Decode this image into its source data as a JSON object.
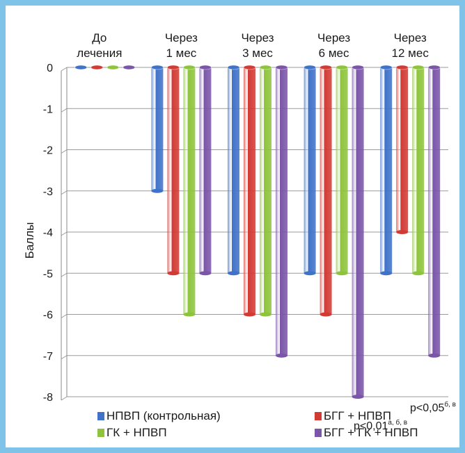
{
  "chart_data": {
    "type": "bar",
    "style": "3d-cylinder",
    "categories": [
      [
        "До",
        "лечения"
      ],
      [
        "Через",
        "1 мес"
      ],
      [
        "Через",
        "3 мес"
      ],
      [
        "Через",
        "6 мес"
      ],
      [
        "Через",
        "12 мес"
      ]
    ],
    "series": [
      {
        "name": "НПВП (контрольная)",
        "color": "#3f72c8",
        "values": [
          0,
          -3,
          -5,
          -5,
          -5
        ]
      },
      {
        "name": "БГГ + НПВП",
        "color": "#d23a34",
        "values": [
          0,
          -5,
          -6,
          -6,
          -4
        ]
      },
      {
        "name": "ГК + НПВП",
        "color": "#8ec43c",
        "values": [
          0,
          -6,
          -6,
          -5,
          -5
        ]
      },
      {
        "name": "БГГ + ГК + НПВП",
        "color": "#7a55a8",
        "values": [
          0,
          -5,
          -7,
          -8,
          -7
        ]
      }
    ],
    "ylabel": "Баллы",
    "ylim": [
      -8,
      0
    ],
    "yticks": [
      0,
      -1,
      -2,
      -3,
      -4,
      -5,
      -6,
      -7,
      -8
    ],
    "grid": true,
    "legend_position": "bottom",
    "annotations": [
      {
        "category_index": 3,
        "text": "p<0,01",
        "sup": "а, б, в"
      },
      {
        "category_index": 4,
        "text": "p<0,05",
        "sup": "б, в"
      }
    ]
  }
}
